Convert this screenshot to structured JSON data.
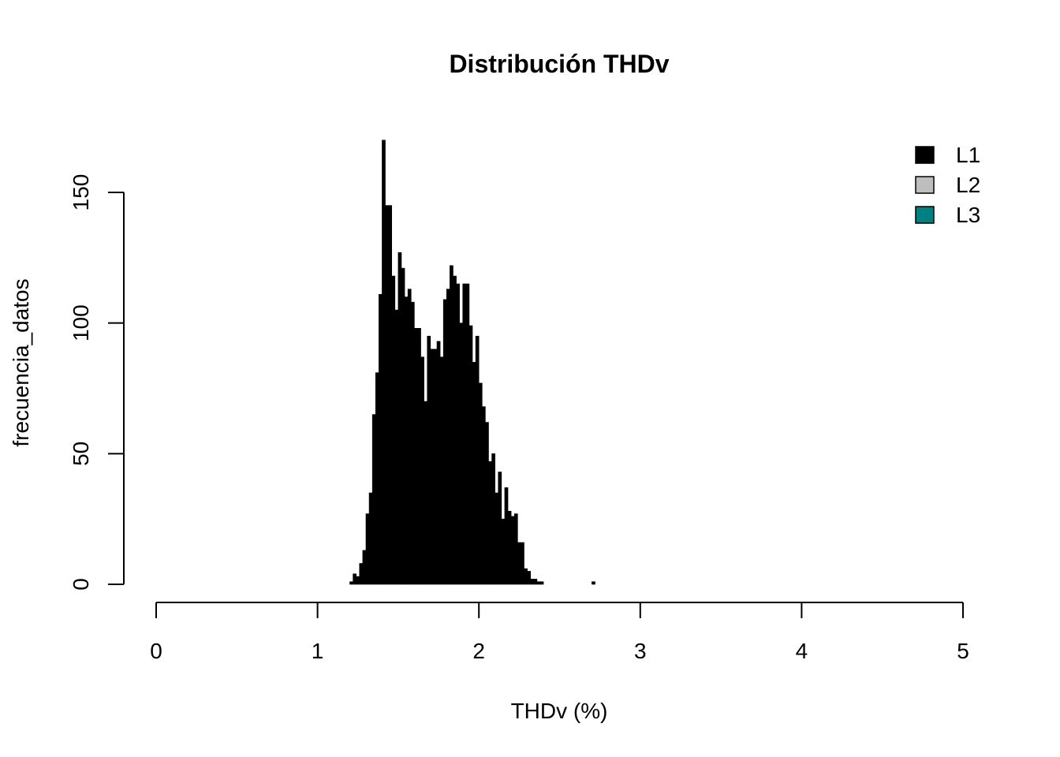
{
  "chart_data": {
    "type": "bar",
    "title": "Distribución THDv",
    "xlabel": "THDv (%)",
    "ylabel": "frecuencia_datos",
    "xlim": [
      0,
      5
    ],
    "ylim": [
      0,
      150
    ],
    "x_ticks": [
      "0",
      "1",
      "2",
      "3",
      "4",
      "5"
    ],
    "y_ticks": [
      "0",
      "50",
      "100",
      "150"
    ],
    "bin_width": 0.02,
    "bin_start": 1.2,
    "legend": {
      "position": "top-right",
      "entries": [
        {
          "label": "L1",
          "color": "#000000"
        },
        {
          "label": "L2",
          "color": "#bebebe"
        },
        {
          "label": "L3",
          "color": "#008080"
        }
      ]
    },
    "series": [
      {
        "name": "L1",
        "color": "#000000",
        "values": [
          1,
          4,
          3,
          8,
          13,
          27,
          35,
          65,
          81,
          111,
          170,
          145,
          145,
          118,
          105,
          127,
          121,
          110,
          113,
          108,
          98,
          98,
          87,
          70,
          95,
          90,
          90,
          93,
          87,
          109,
          113,
          122,
          118,
          115,
          100,
          115,
          115,
          99,
          85,
          95,
          77,
          68,
          62,
          47,
          50,
          35,
          43,
          25,
          37,
          28,
          26,
          27,
          16,
          16,
          6,
          5,
          2,
          2,
          1,
          1,
          0,
          0,
          0,
          0,
          0,
          0,
          0,
          0,
          0,
          0,
          0,
          0,
          0,
          0,
          0,
          1
        ]
      },
      {
        "name": "L2",
        "color": "#bebebe",
        "values": []
      },
      {
        "name": "L3",
        "color": "#008080",
        "values": []
      }
    ]
  }
}
